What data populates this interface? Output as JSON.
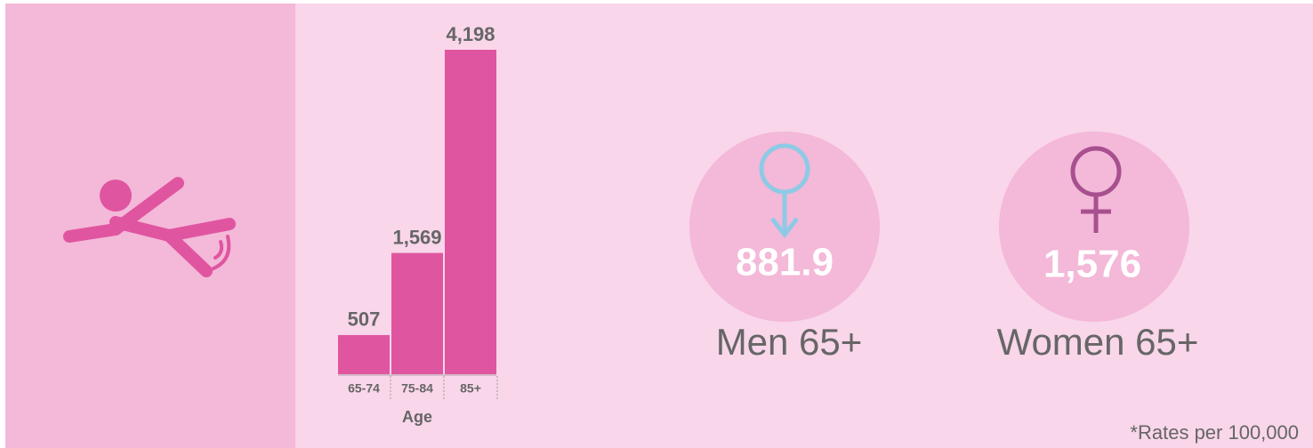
{
  "chart_data": {
    "type": "bar",
    "categories": [
      "65-74",
      "75-84",
      "85+"
    ],
    "values": [
      507,
      1569,
      4198
    ],
    "value_labels": [
      "507",
      "1,569",
      "4,198"
    ],
    "x_label": "Age",
    "color": "#e055a0"
  },
  "stats": [
    {
      "label": "Men 65+",
      "value": 881.9
    },
    {
      "label": "Women 65+",
      "value": 1576,
      "value_label": "1,576"
    }
  ],
  "footnote": "*Rates per 100,000"
}
